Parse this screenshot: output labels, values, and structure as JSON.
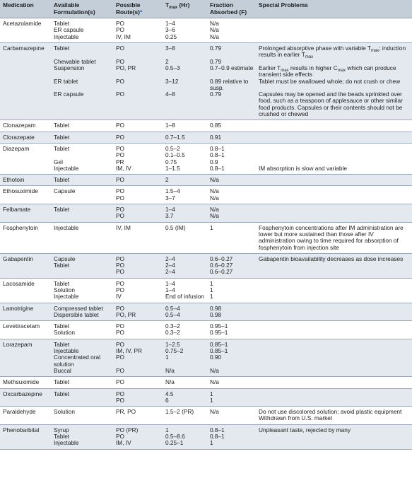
{
  "table": {
    "header": [
      "Medication",
      "Available Formulation(s)",
      {
        "text": "Possible Route(s)",
        "mark": "*"
      },
      [
        "T",
        "max",
        " (Hr)"
      ],
      "Fraction Absorbed (F)",
      "Special Problems"
    ],
    "rows": [
      {
        "medication": "Acetazolamide",
        "lines": [
          [
            "Tablet",
            "PO",
            "1–4",
            "N/a",
            null
          ],
          [
            "ER capsule",
            "PO",
            "3–6",
            "N/a",
            null
          ],
          [
            "Injectable",
            "IV, IM",
            "0.25",
            "N/a",
            null
          ]
        ]
      },
      {
        "medication": "Carbamazepine",
        "lines": [
          [
            "Tablet",
            "PO",
            "3–8",
            "0.79",
            [
              "Prolonged absorptive phase with variable T",
              "max",
              "; induction results in earlier T",
              "max"
            ]
          ],
          [
            "Chewable tablet",
            "PO",
            "2",
            "0.79",
            null
          ],
          [
            "Suspension",
            "PO, PR",
            "0.5–3",
            "0.7–0.9 estimate",
            [
              "Earlier T",
              "max",
              " results in higher C",
              "max",
              " which can produce transient side effects"
            ]
          ],
          [
            "ER tablet",
            "PO",
            "3–12",
            "0.89 relative to susp.",
            "Tablet must be swallowed whole; do not crush or chew"
          ],
          [
            "ER capsule",
            "PO",
            "4–8",
            "0.79",
            "Capsules may be opened and the beads sprinkled over food, such as a teaspoon of applesauce or other similar food products. Capsules or their contents should not be crushed or chewed"
          ]
        ]
      },
      {
        "medication": "Clonazepam",
        "lines": [
          [
            "Tablet",
            "PO",
            "1–8",
            "0.85",
            null
          ]
        ]
      },
      {
        "medication": "Clorazepate",
        "lines": [
          [
            "Tablet",
            "PO",
            "0.7–1.5",
            "0.91",
            null
          ]
        ]
      },
      {
        "medication": "Diazepam",
        "lines": [
          [
            "Tablet",
            "PO",
            "0.5–2",
            "0.8–1",
            null
          ],
          [
            null,
            "PO",
            "0.1–0.5",
            "0.8–1",
            null
          ],
          [
            "Gel",
            "PR",
            "0.75",
            "0.9",
            null
          ],
          [
            "Injectable",
            "IM, IV",
            "1–1.5",
            "0.8–1",
            "IM absorption is slow and variable"
          ]
        ]
      },
      {
        "medication": "Ethotoin",
        "lines": [
          [
            "Tablet",
            "PO",
            "2",
            "N/a",
            null
          ]
        ]
      },
      {
        "medication": "Ethosuximide",
        "lines": [
          [
            "Capsule",
            "PO",
            "1.5–4",
            "N/a",
            null
          ],
          [
            null,
            "PO",
            "3–7",
            "N/a",
            null
          ]
        ]
      },
      {
        "medication": "Felbamate",
        "lines": [
          [
            "Tablet",
            "PO",
            "1–4",
            "N/a",
            null
          ],
          [
            null,
            "PO",
            "3.7",
            "N/a",
            null
          ]
        ]
      },
      {
        "medication": "Fosphenytoin",
        "lines": [
          [
            "Injectable",
            "IV, IM",
            "0.5 (IM)",
            "1",
            "Fosphenytoin concentrations after IM administration are lower but more sustained than those after IV administration owing to time required for absorption of fosphenytoin from injection site"
          ]
        ]
      },
      {
        "medication": "Gabapentin",
        "lines": [
          [
            "Capsule",
            "PO",
            "2–4",
            "0.6–0.27",
            "Gabapentin bioavailability decreases as dose increases"
          ],
          [
            "Tablet",
            "PO",
            "2–4",
            "0.6–0.27",
            null
          ],
          [
            null,
            "PO",
            "2–4",
            "0.6–0.27",
            null
          ]
        ]
      },
      {
        "medication": "Lacosamide",
        "lines": [
          [
            "Tablet",
            "PO",
            "1–4",
            "1",
            null
          ],
          [
            "Solution",
            "PO",
            "1–4",
            "1",
            null
          ],
          [
            "Injectable",
            "IV",
            "End of infusion",
            "1",
            null
          ]
        ]
      },
      {
        "medication": "Lamotrigine",
        "lines": [
          [
            "Compressed tablet",
            "PO",
            "0.5–4",
            "0.98",
            null
          ],
          [
            "Dispersible tablet",
            "PO, PR",
            "0.5–4",
            "0.98",
            null
          ]
        ]
      },
      {
        "medication": "Levetiracetam",
        "lines": [
          [
            "Tablet",
            "PO",
            "0.3–2",
            "0.95–1",
            null
          ],
          [
            "Solution",
            "PO",
            "0.3–2",
            "0.95–1",
            null
          ]
        ]
      },
      {
        "medication": "Lorazepam",
        "lines": [
          [
            "Tablet",
            "PO",
            "1–2.5",
            "0.85–1",
            null
          ],
          [
            "Injectable",
            "IM, IV, PR",
            "0.75–2",
            "0.85–1",
            null
          ],
          [
            "Concentrated oral solution",
            "PO",
            "1",
            "0.90",
            null
          ],
          [
            "Buccal",
            "PO",
            "N/a",
            "N/a",
            null
          ]
        ]
      },
      {
        "medication": "Methsuximide",
        "lines": [
          [
            "Tablet",
            "PO",
            "N/a",
            "N/a",
            null
          ]
        ]
      },
      {
        "medication": "Oxcarbazepine",
        "lines": [
          [
            "Tablet",
            "PO",
            "4.5",
            "1",
            null
          ],
          [
            null,
            "PO",
            "6",
            "1",
            null
          ]
        ]
      },
      {
        "medication": "Paraldehyde",
        "lines": [
          [
            "Solution",
            "PR, PO",
            "1.5–2 (PR)",
            "N/a",
            "Do not use discolored solution; avoid plastic equipment"
          ],
          [
            null,
            null,
            null,
            null,
            "Withdrawn from U.S. market"
          ]
        ]
      },
      {
        "medication": "Phenobarbital",
        "lines": [
          [
            "Syrup",
            "PO (PR)",
            "1",
            "0.8–1",
            "Unpleasant taste, rejected by many"
          ],
          [
            "Tablet",
            "PO",
            "0.5–8.6",
            "0.8–1",
            null
          ],
          [
            "Injectable",
            "IM, IV",
            "0.25–1",
            "1",
            null
          ]
        ]
      }
    ]
  }
}
